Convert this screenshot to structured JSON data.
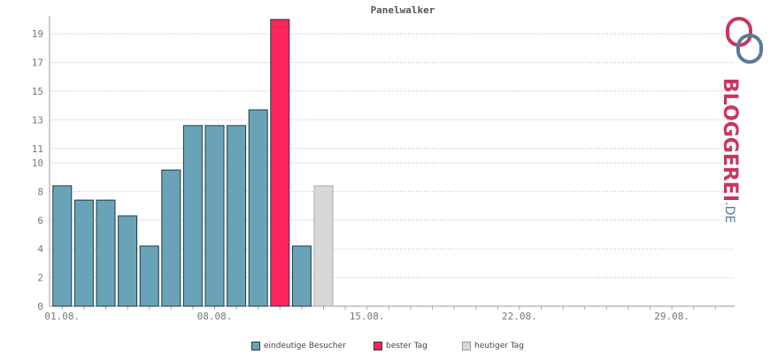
{
  "chart_data": {
    "type": "bar",
    "title": "Panelwalker",
    "ylim": [
      0,
      20
    ],
    "y_ticks": [
      0,
      2,
      4,
      6,
      8,
      10,
      11,
      13,
      15,
      17,
      19
    ],
    "x_tick_labels": [
      "01.08.",
      "08.08.",
      "15.08.",
      "22.08.",
      "29.08."
    ],
    "x_tick_days": [
      1,
      8,
      15,
      22,
      29
    ],
    "num_days": 31,
    "grid": true,
    "legend_placement": "bottom",
    "bars": [
      {
        "day": 1,
        "value": 8.4,
        "series": "eindeutige Besucher"
      },
      {
        "day": 2,
        "value": 7.4,
        "series": "eindeutige Besucher"
      },
      {
        "day": 3,
        "value": 7.4,
        "series": "eindeutige Besucher"
      },
      {
        "day": 4,
        "value": 6.3,
        "series": "eindeutige Besucher"
      },
      {
        "day": 5,
        "value": 4.2,
        "series": "eindeutige Besucher"
      },
      {
        "day": 6,
        "value": 9.5,
        "series": "eindeutige Besucher"
      },
      {
        "day": 7,
        "value": 12.6,
        "series": "eindeutige Besucher"
      },
      {
        "day": 8,
        "value": 12.6,
        "series": "eindeutige Besucher"
      },
      {
        "day": 9,
        "value": 12.6,
        "series": "eindeutige Besucher"
      },
      {
        "day": 10,
        "value": 13.7,
        "series": "eindeutige Besucher"
      },
      {
        "day": 11,
        "value": 20,
        "series": "bester Tag"
      },
      {
        "day": 12,
        "value": 4.2,
        "series": "eindeutige Besucher"
      },
      {
        "day": 13,
        "value": 8.4,
        "series": "heutiger Tag"
      }
    ],
    "series": [
      {
        "name": "eindeutige Besucher",
        "color": "#6aa2b8"
      },
      {
        "name": "bester Tag",
        "color": "#ff245c"
      },
      {
        "name": "heutiger Tag",
        "color": "#d8d8d8"
      }
    ]
  },
  "logo": {
    "text_main": "BLOGGEREI",
    "text_suffix": ".DE",
    "color_main": "#c8365e",
    "color_suffix": "#5a7a9a"
  }
}
